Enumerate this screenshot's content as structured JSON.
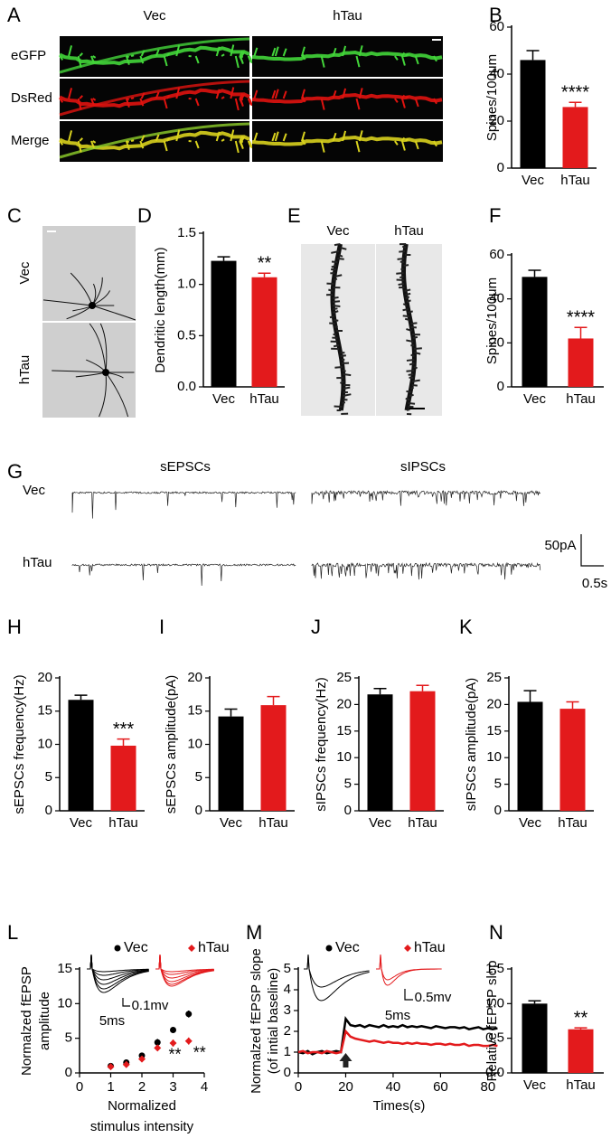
{
  "panel_letters": [
    "A",
    "B",
    "C",
    "D",
    "E",
    "F",
    "G",
    "H",
    "I",
    "J",
    "K",
    "L",
    "M",
    "N"
  ],
  "figure_labels": {
    "A": {
      "columns": [
        "Vec",
        "hTau"
      ],
      "rows": [
        "eGFP",
        "DsRed",
        "Merge"
      ]
    },
    "C": {
      "rows": [
        "Vec",
        "hTau"
      ]
    },
    "E": {
      "columns": [
        "Vec",
        "hTau"
      ]
    },
    "G": {
      "columns": [
        "sEPSCs",
        "sIPSCs"
      ],
      "rows": [
        "Vec",
        "hTau"
      ],
      "scale_y": "50pA",
      "scale_x": "0.5s"
    },
    "L_inset": {
      "scale_y": "0.1mv",
      "scale_x": "5ms"
    },
    "M_inset": {
      "scale_y": "0.5mv",
      "scale_x": "5ms"
    }
  },
  "chart_data": [
    {
      "type": "bar",
      "ylabel": "Spines/100μm",
      "categories": [
        "Vec",
        "hTau"
      ],
      "values": [
        46,
        26
      ],
      "errors": [
        4,
        2
      ],
      "colors": [
        "#000000",
        "#e31a1c"
      ],
      "ylim": [
        0,
        60
      ],
      "yticks": [
        0,
        20,
        40,
        60
      ],
      "annotation": "****"
    },
    {
      "type": "bar",
      "ylabel": "Dendritic length(mm)",
      "categories": [
        "Vec",
        "hTau"
      ],
      "values": [
        1.23,
        1.07
      ],
      "errors": [
        0.04,
        0.04
      ],
      "colors": [
        "#000000",
        "#e31a1c"
      ],
      "ylim": [
        0,
        1.5
      ],
      "yticks": [
        {
          "value": 0,
          "label": "0.0"
        },
        0.5,
        {
          "value": 1,
          "label": "1.0"
        },
        1.5
      ],
      "annotation": "**"
    },
    {
      "type": "bar",
      "ylabel": "Spines/100μm",
      "categories": [
        "Vec",
        "hTau"
      ],
      "values": [
        50,
        22
      ],
      "errors": [
        3,
        5
      ],
      "colors": [
        "#000000",
        "#e31a1c"
      ],
      "ylim": [
        0,
        60
      ],
      "yticks": [
        0,
        20,
        40,
        60
      ],
      "annotation": "****"
    },
    {
      "type": "bar",
      "ylabel": "sEPSCs frequency(Hz)",
      "categories": [
        "Vec",
        "hTau"
      ],
      "values": [
        16.7,
        9.8
      ],
      "errors": [
        0.7,
        1.0
      ],
      "colors": [
        "#000000",
        "#e31a1c"
      ],
      "ylim": [
        0,
        20
      ],
      "yticks": [
        0,
        5,
        10,
        15,
        20
      ],
      "annotation": "***"
    },
    {
      "type": "bar",
      "ylabel": "sEPSCs amplitude(pA)",
      "categories": [
        "Vec",
        "hTau"
      ],
      "values": [
        14.2,
        15.9
      ],
      "errors": [
        1.1,
        1.3
      ],
      "colors": [
        "#000000",
        "#e31a1c"
      ],
      "ylim": [
        0,
        20
      ],
      "yticks": [
        0,
        5,
        10,
        15,
        20
      ]
    },
    {
      "type": "bar",
      "ylabel": "sIPSCs frequency(Hz)",
      "categories": [
        "Vec",
        "hTau"
      ],
      "values": [
        21.9,
        22.5
      ],
      "errors": [
        1.1,
        1.1
      ],
      "colors": [
        "#000000",
        "#e31a1c"
      ],
      "ylim": [
        0,
        25
      ],
      "yticks": [
        0,
        5,
        10,
        15,
        20,
        25
      ]
    },
    {
      "type": "bar",
      "ylabel": "sIPSCs amplitude(pA)",
      "categories": [
        "Vec",
        "hTau"
      ],
      "values": [
        20.5,
        19.2
      ],
      "errors": [
        2.1,
        1.3
      ],
      "colors": [
        "#000000",
        "#e31a1c"
      ],
      "ylim": [
        0,
        25
      ],
      "yticks": [
        0,
        5,
        10,
        15,
        20,
        25
      ]
    },
    {
      "type": "scatter",
      "ylabel": [
        "Normalzed fEPSP",
        "amplitude"
      ],
      "xlabel": [
        "Normalized",
        "stimulus intensity"
      ],
      "x": [
        1,
        1.5,
        2,
        2.5,
        3,
        3.5
      ],
      "series": [
        {
          "name": "Vec",
          "color": "#000000",
          "marker": "circle",
          "values": [
            1.0,
            1.5,
            2.5,
            4.4,
            6.2,
            8.5
          ],
          "errors": [
            0.1,
            0.2,
            0.2,
            0.5,
            0.4,
            0.5
          ]
        },
        {
          "name": "hTau",
          "color": "#e31a1c",
          "marker": "diamond",
          "values": [
            0.9,
            1.2,
            2.0,
            3.6,
            4.3,
            4.6
          ],
          "errors": [
            0.1,
            0.15,
            0.2,
            0.4,
            0.5,
            0.5
          ]
        }
      ],
      "xlim": [
        0,
        4
      ],
      "xticks": [
        0,
        1,
        2,
        3,
        4
      ],
      "ylim": [
        0,
        15
      ],
      "yticks": [
        0,
        5,
        10,
        15
      ],
      "annotations": [
        "**",
        "**"
      ]
    },
    {
      "type": "line",
      "ylabel": [
        "Normalzed fEPSP slope",
        "(of intial baseline)"
      ],
      "xlabel": "Times(s)",
      "x": [
        0,
        2,
        4,
        6,
        8,
        10,
        12,
        14,
        16,
        18,
        20,
        22,
        24,
        26,
        28,
        30,
        32,
        34,
        36,
        38,
        40,
        42,
        44,
        46,
        48,
        50,
        52,
        54,
        56,
        58,
        60,
        62,
        64,
        66,
        68,
        70,
        72,
        74,
        76,
        78,
        80,
        82,
        84
      ],
      "series": [
        {
          "name": "Vec",
          "color": "#000000",
          "marker": "circle",
          "values": [
            1.0,
            0.95,
            1.05,
            0.9,
            1.0,
            1.05,
            0.95,
            1.0,
            1.05,
            1.0,
            2.6,
            2.3,
            2.25,
            2.3,
            2.2,
            2.3,
            2.25,
            2.2,
            2.3,
            2.2,
            2.25,
            2.2,
            2.3,
            2.2,
            2.25,
            2.2,
            2.25,
            2.2,
            2.15,
            2.25,
            2.2,
            2.15,
            2.2,
            2.2,
            2.15,
            2.2,
            2.1,
            2.15,
            2.2,
            2.1,
            2.15,
            2.1,
            2.15
          ]
        },
        {
          "name": "hTau",
          "color": "#e31a1c",
          "marker": "diamond",
          "values": [
            1.0,
            1.05,
            0.95,
            1.0,
            1.0,
            0.95,
            1.05,
            1.0,
            0.95,
            1.0,
            2.0,
            1.75,
            1.65,
            1.6,
            1.55,
            1.5,
            1.55,
            1.5,
            1.45,
            1.5,
            1.45,
            1.45,
            1.4,
            1.45,
            1.4,
            1.45,
            1.4,
            1.4,
            1.35,
            1.4,
            1.4,
            1.35,
            1.4,
            1.35,
            1.35,
            1.4,
            1.3,
            1.35,
            1.35,
            1.3,
            1.3,
            1.35,
            1.3
          ]
        }
      ],
      "xlim": [
        0,
        85
      ],
      "xticks": [
        0,
        20,
        40,
        60,
        80
      ],
      "ylim": [
        0,
        5
      ],
      "yticks": [
        0,
        1,
        2,
        3,
        4,
        5
      ]
    },
    {
      "type": "bar",
      "ylabel": "Relative fEPSP slop",
      "categories": [
        "Vec",
        "hTau"
      ],
      "values": [
        1.0,
        0.63
      ],
      "errors": [
        0.04,
        0.02
      ],
      "colors": [
        "#000000",
        "#e31a1c"
      ],
      "ylim": [
        0,
        1.5
      ],
      "yticks": [
        {
          "value": 0,
          "label": "0.0"
        },
        0.5,
        {
          "value": 1,
          "label": "1.0"
        },
        1.5
      ],
      "annotation": "**"
    }
  ]
}
